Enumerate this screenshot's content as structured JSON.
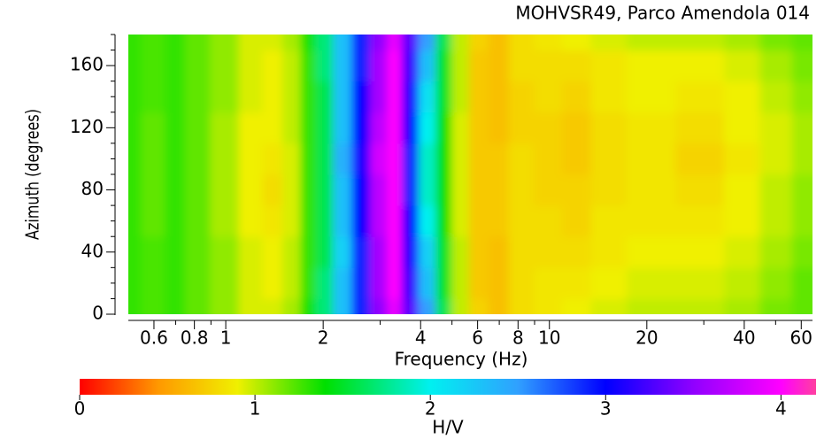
{
  "chart_data": {
    "type": "heatmap",
    "title": "MOHVSR49, Parco Amendola 014",
    "xlabel": "Frequency (Hz)",
    "ylabel": "Azimuth (degrees)",
    "zlabel": "H/V",
    "x": [
      0.5,
      0.6,
      0.7,
      0.8,
      1,
      1.2,
      1.4,
      1.6,
      1.8,
      2,
      2.3,
      2.6,
      3,
      3.3,
      3.7,
      4.2,
      4.7,
      5.3,
      6,
      7,
      8,
      10,
      12,
      15,
      20,
      30,
      40,
      50,
      63
    ],
    "y": [
      0,
      20,
      40,
      60,
      80,
      100,
      120,
      140,
      160,
      180
    ],
    "z": [
      [
        1.3,
        1.25,
        1.3,
        1.2,
        1.1,
        0.95,
        0.95,
        1.05,
        1.35,
        1.7,
        2.3,
        2.9,
        3.5,
        3.9,
        3.3,
        2.5,
        1.6,
        1.0,
        0.75,
        0.65,
        0.8,
        0.85,
        0.9,
        0.95,
        1.0,
        1.0,
        1.05,
        1.15,
        1.2
      ],
      [
        1.3,
        1.25,
        1.3,
        1.2,
        1.1,
        0.95,
        0.9,
        1.0,
        1.3,
        1.7,
        2.3,
        2.9,
        3.6,
        4.0,
        3.2,
        2.3,
        1.5,
        1.0,
        0.7,
        0.65,
        0.8,
        0.85,
        0.85,
        0.9,
        0.95,
        0.95,
        1.0,
        1.1,
        1.2
      ],
      [
        1.3,
        1.25,
        1.3,
        1.2,
        1.1,
        0.95,
        0.9,
        1.0,
        1.3,
        1.6,
        2.2,
        2.9,
        3.6,
        4.0,
        3.1,
        2.2,
        1.5,
        1.0,
        0.7,
        0.65,
        0.8,
        0.8,
        0.8,
        0.85,
        0.9,
        0.9,
        0.95,
        1.05,
        1.15
      ],
      [
        1.3,
        1.2,
        1.3,
        1.2,
        1.05,
        0.9,
        0.85,
        0.95,
        1.3,
        1.6,
        2.3,
        3.0,
        3.7,
        4.0,
        3.0,
        2.0,
        1.4,
        0.95,
        0.7,
        0.7,
        0.8,
        0.8,
        0.75,
        0.85,
        0.85,
        0.85,
        0.9,
        1.0,
        1.1
      ],
      [
        1.3,
        1.2,
        1.3,
        1.2,
        1.05,
        0.9,
        0.8,
        0.95,
        1.3,
        1.6,
        2.3,
        3.0,
        3.7,
        4.0,
        2.9,
        1.9,
        1.4,
        0.95,
        0.7,
        0.7,
        0.8,
        0.75,
        0.75,
        0.8,
        0.85,
        0.8,
        0.9,
        1.0,
        1.1
      ],
      [
        1.3,
        1.2,
        1.3,
        1.2,
        1.05,
        0.9,
        0.85,
        0.95,
        1.3,
        1.6,
        2.4,
        3.1,
        3.8,
        4.0,
        2.9,
        1.9,
        1.4,
        0.95,
        0.7,
        0.7,
        0.8,
        0.75,
        0.7,
        0.8,
        0.85,
        0.75,
        0.85,
        0.95,
        1.05
      ],
      [
        1.3,
        1.2,
        1.3,
        1.2,
        1.05,
        0.9,
        0.9,
        1.0,
        1.3,
        1.6,
        2.3,
        3.0,
        3.7,
        4.0,
        3.0,
        2.0,
        1.4,
        0.95,
        0.7,
        0.65,
        0.75,
        0.75,
        0.7,
        0.8,
        0.85,
        0.8,
        0.9,
        0.95,
        1.05
      ],
      [
        1.3,
        1.25,
        1.3,
        1.2,
        1.1,
        0.95,
        0.9,
        1.0,
        1.3,
        1.6,
        2.3,
        3.0,
        3.6,
        4.0,
        3.1,
        2.1,
        1.5,
        1.0,
        0.7,
        0.65,
        0.75,
        0.8,
        0.75,
        0.85,
        0.9,
        0.85,
        0.9,
        1.0,
        1.1
      ],
      [
        1.3,
        1.25,
        1.3,
        1.2,
        1.1,
        0.95,
        0.9,
        1.0,
        1.3,
        1.7,
        2.3,
        2.9,
        3.6,
        4.0,
        3.2,
        2.3,
        1.5,
        1.0,
        0.7,
        0.65,
        0.8,
        0.8,
        0.8,
        0.85,
        0.9,
        0.9,
        0.95,
        1.05,
        1.15
      ],
      [
        1.3,
        1.25,
        1.3,
        1.2,
        1.1,
        0.95,
        0.95,
        1.05,
        1.35,
        1.7,
        2.3,
        2.9,
        3.5,
        3.9,
        3.3,
        2.5,
        1.6,
        1.0,
        0.75,
        0.65,
        0.8,
        0.85,
        0.9,
        0.95,
        1.0,
        1.0,
        1.05,
        1.15,
        1.2
      ]
    ],
    "xlim": [
      0.5,
      65
    ],
    "xscale": "log",
    "xticks": [
      0.6,
      0.8,
      1,
      2,
      4,
      6,
      8,
      10,
      20,
      40,
      60
    ],
    "xminor_ticks": [
      0.7,
      0.9,
      3,
      5,
      7,
      9,
      30,
      50
    ],
    "ylim": [
      0,
      180
    ],
    "yticks": [
      0,
      40,
      80,
      120,
      160
    ],
    "yminor_ticks": [
      10,
      20,
      30,
      50,
      60,
      70,
      90,
      100,
      110,
      130,
      140,
      150,
      170,
      180
    ],
    "zlim": [
      0,
      4.2
    ],
    "zticks": [
      0,
      1,
      2,
      3,
      4
    ],
    "colormap": [
      {
        "value": 0,
        "color": "#ff0000"
      },
      {
        "value": 0.45,
        "color": "#ff9900"
      },
      {
        "value": 0.9,
        "color": "#f0f000"
      },
      {
        "value": 1.4,
        "color": "#00e000"
      },
      {
        "value": 2.0,
        "color": "#00f0f0"
      },
      {
        "value": 2.5,
        "color": "#30a0ff"
      },
      {
        "value": 3.0,
        "color": "#0000ff"
      },
      {
        "value": 3.5,
        "color": "#9000ff"
      },
      {
        "value": 4.0,
        "color": "#ff00ff"
      },
      {
        "value": 4.2,
        "color": "#ff40a0"
      }
    ]
  }
}
